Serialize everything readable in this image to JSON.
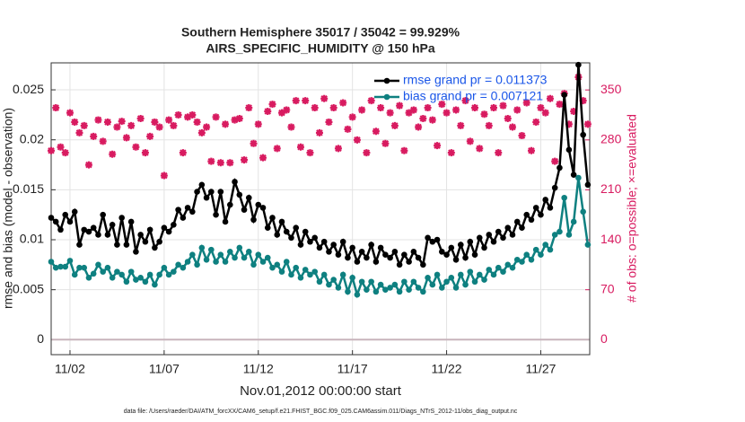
{
  "chart_data": {
    "type": "line",
    "title": "Southern Hemisphere 35017 / 35042 = 99.929%",
    "subtitle": "AIRS_SPECIFIC_HUMIDITY @ 150 hPa",
    "ylabel": "rmse and bias (model - observation)",
    "y2label": "# of obs: o=possible; ×=evaluated",
    "xlabel": "Nov.01,2012 00:00:00 start",
    "footnote": "data file: /Users/raeder/DAI/ATM_forcXX/CAM6_setup/f.e21.FHIST_BGC.f09_025.CAM6assim.011/Diags_NTrS_2012-11/obs_diag_output.nc",
    "legend": "northeast",
    "grid": true,
    "xlim": [
      0,
      28.6
    ],
    "xticks": [
      {
        "value": 1,
        "label": "11/02"
      },
      {
        "value": 6,
        "label": "11/07"
      },
      {
        "value": 11,
        "label": "11/12"
      },
      {
        "value": 16,
        "label": "11/17"
      },
      {
        "value": 21,
        "label": "11/22"
      },
      {
        "value": 26,
        "label": "11/27"
      }
    ],
    "ylim": [
      -0.0015,
      0.0277
    ],
    "yticks": [
      0,
      0.005,
      0.01,
      0.015,
      0.02,
      0.025
    ],
    "y2lim": [
      -21,
      388
    ],
    "y2ticks": [
      0,
      70,
      140,
      210,
      280,
      350
    ],
    "x": [
      0,
      0.25,
      0.5,
      0.75,
      1,
      1.25,
      1.5,
      1.75,
      2,
      2.25,
      2.5,
      2.75,
      3,
      3.25,
      3.5,
      3.75,
      4,
      4.25,
      4.5,
      4.75,
      5,
      5.25,
      5.5,
      5.75,
      6,
      6.25,
      6.5,
      6.75,
      7,
      7.25,
      7.5,
      7.75,
      8,
      8.25,
      8.5,
      8.75,
      9,
      9.25,
      9.5,
      9.75,
      10,
      10.25,
      10.5,
      10.75,
      11,
      11.25,
      11.5,
      11.75,
      12,
      12.25,
      12.5,
      12.75,
      13,
      13.25,
      13.5,
      13.75,
      14,
      14.25,
      14.5,
      14.75,
      15,
      15.25,
      15.5,
      15.75,
      16,
      16.25,
      16.5,
      16.75,
      17,
      17.25,
      17.5,
      17.75,
      18,
      18.25,
      18.5,
      18.75,
      19,
      19.25,
      19.5,
      19.75,
      20,
      20.25,
      20.5,
      20.75,
      21,
      21.25,
      21.5,
      21.75,
      22,
      22.25,
      22.5,
      22.75,
      23,
      23.25,
      23.5,
      23.75,
      24,
      24.25,
      24.5,
      24.75,
      25,
      25.25,
      25.5,
      25.75,
      26,
      26.25,
      26.5,
      26.75,
      27,
      27.25,
      27.5,
      27.75,
      28,
      28.25,
      28.5
    ],
    "series": [
      {
        "name": "rmse grand pr = 0.011373",
        "color": "#000000",
        "values": [
          0.0122,
          0.0118,
          0.011,
          0.0125,
          0.0118,
          0.0128,
          0.0095,
          0.011,
          0.0108,
          0.0112,
          0.0105,
          0.0125,
          0.0105,
          0.0115,
          0.0095,
          0.0122,
          0.0095,
          0.0118,
          0.0088,
          0.0105,
          0.0098,
          0.011,
          0.0092,
          0.0098,
          0.0112,
          0.0108,
          0.0115,
          0.013,
          0.0122,
          0.0132,
          0.0128,
          0.0148,
          0.0155,
          0.0142,
          0.0148,
          0.0125,
          0.0148,
          0.0118,
          0.0135,
          0.0158,
          0.0145,
          0.013,
          0.0142,
          0.012,
          0.0135,
          0.0132,
          0.0112,
          0.0122,
          0.0105,
          0.0118,
          0.0108,
          0.0102,
          0.0112,
          0.0095,
          0.0108,
          0.0098,
          0.0102,
          0.0092,
          0.0098,
          0.0088,
          0.0095,
          0.0085,
          0.0098,
          0.0082,
          0.0092,
          0.0078,
          0.0088,
          0.0082,
          0.0095,
          0.0078,
          0.0092,
          0.0085,
          0.0082,
          0.0088,
          0.0075,
          0.0085,
          0.0078,
          0.0088,
          0.0082,
          0.0075,
          0.0102,
          0.0098,
          0.01,
          0.0088,
          0.0085,
          0.0092,
          0.008,
          0.0095,
          0.0082,
          0.0098,
          0.0085,
          0.0102,
          0.0092,
          0.0105,
          0.0098,
          0.0108,
          0.0102,
          0.0112,
          0.0105,
          0.0118,
          0.0112,
          0.0125,
          0.012,
          0.0132,
          0.0125,
          0.014,
          0.0132,
          0.0152,
          0.0172,
          0.0245,
          0.019,
          0.0165,
          0.0275,
          0.0205,
          0.0155
        ]
      },
      {
        "name": "bias grand pr = 0.007121",
        "color": "#0e8080",
        "values": [
          0.0078,
          0.0072,
          0.0073,
          0.0073,
          0.0079,
          0.0065,
          0.0072,
          0.0072,
          0.0062,
          0.0066,
          0.0075,
          0.0068,
          0.0072,
          0.0062,
          0.0068,
          0.0065,
          0.0058,
          0.0068,
          0.006,
          0.0062,
          0.0058,
          0.0065,
          0.0055,
          0.0065,
          0.0072,
          0.0065,
          0.0068,
          0.0075,
          0.0072,
          0.0078,
          0.0085,
          0.0075,
          0.0092,
          0.008,
          0.009,
          0.0078,
          0.0085,
          0.0078,
          0.0088,
          0.0082,
          0.0092,
          0.0082,
          0.0088,
          0.0075,
          0.0085,
          0.0078,
          0.0082,
          0.0072,
          0.0075,
          0.0068,
          0.0078,
          0.0065,
          0.0072,
          0.0062,
          0.007,
          0.0065,
          0.0068,
          0.0058,
          0.0065,
          0.0055,
          0.006,
          0.0052,
          0.0065,
          0.0048,
          0.0062,
          0.0045,
          0.0058,
          0.005,
          0.0058,
          0.0048,
          0.0055,
          0.005,
          0.0052,
          0.0055,
          0.0048,
          0.0058,
          0.005,
          0.0058,
          0.0052,
          0.0048,
          0.0062,
          0.0055,
          0.0065,
          0.0052,
          0.0058,
          0.0062,
          0.0052,
          0.0065,
          0.0055,
          0.0068,
          0.0058,
          0.0065,
          0.006,
          0.007,
          0.0065,
          0.0072,
          0.0068,
          0.0075,
          0.0072,
          0.008,
          0.0078,
          0.0085,
          0.008,
          0.009,
          0.0085,
          0.0095,
          0.009,
          0.0105,
          0.0108,
          0.0142,
          0.0105,
          0.0118,
          0.0162,
          0.0128,
          0.0095
        ]
      }
    ],
    "obs": {
      "axis": "y2",
      "color": "#d81b60",
      "values": [
        265,
        325,
        270,
        262,
        318,
        305,
        290,
        300,
        245,
        285,
        308,
        278,
        305,
        260,
        298,
        306,
        283,
        300,
        270,
        310,
        262,
        285,
        305,
        298,
        230,
        308,
        300,
        315,
        262,
        312,
        315,
        305,
        290,
        298,
        250,
        312,
        248,
        302,
        248,
        308,
        310,
        252,
        325,
        275,
        302,
        255,
        320,
        330,
        268,
        318,
        322,
        298,
        335,
        270,
        335,
        262,
        325,
        290,
        338,
        305,
        325,
        268,
        332,
        295,
        312,
        280,
        322,
        262,
        335,
        292,
        325,
        275,
        318,
        300,
        328,
        265,
        318,
        322,
        298,
        310,
        325,
        308,
        272,
        330,
        318,
        262,
        322,
        300,
        335,
        278,
        325,
        268,
        316,
        300,
        325,
        262,
        328,
        310,
        298,
        322,
        286,
        332,
        265,
        305,
        325,
        318,
        338,
        250,
        330,
        345,
        302,
        320,
        368,
        335,
        302
      ]
    }
  }
}
